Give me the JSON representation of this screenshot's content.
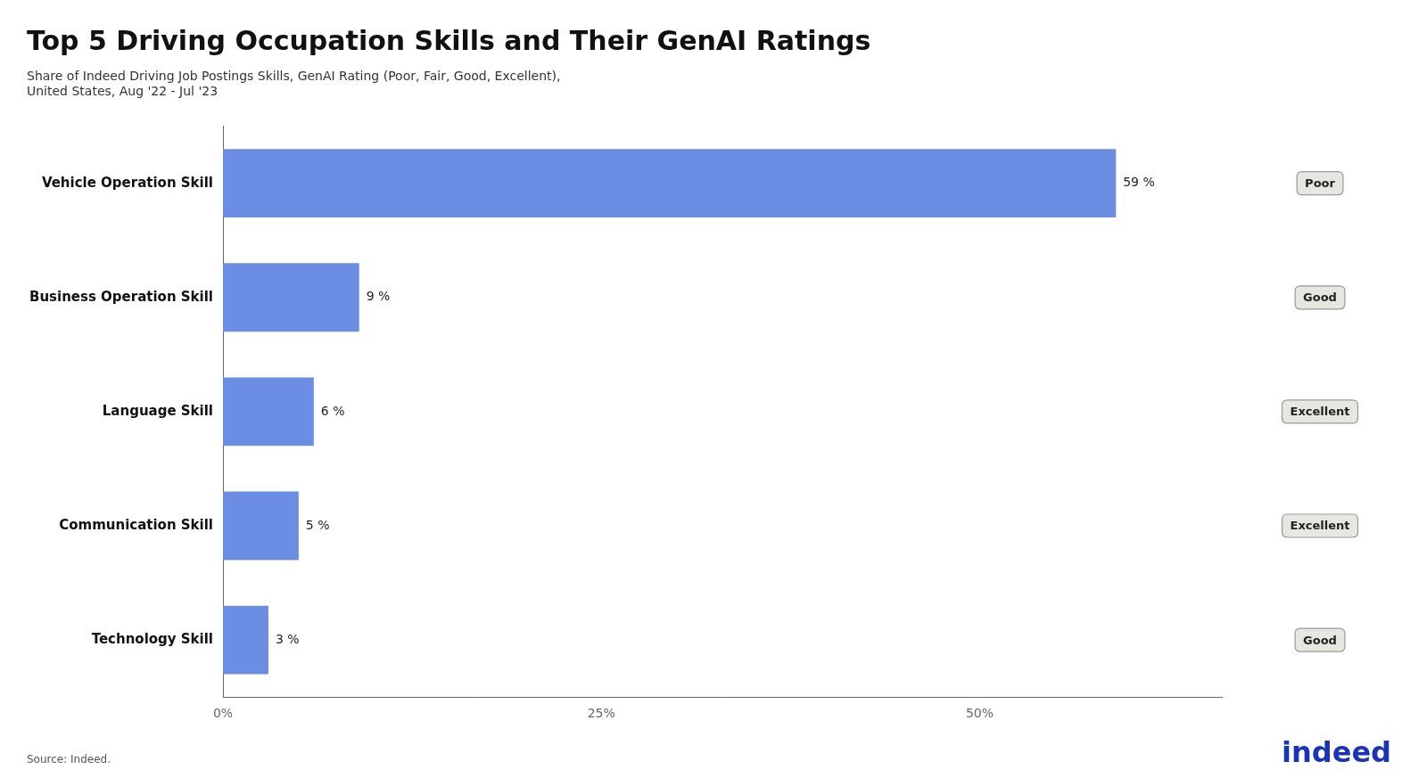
{
  "chart_data": {
    "type": "bar",
    "orientation": "horizontal",
    "title": "Top 5 Driving Occupation Skills and Their GenAI Ratings",
    "subtitle": "Share of Indeed Driving Job Postings Skills, GenAI Rating (Poor, Fair, Good, Excellent),\nUnited States, Aug '22 - Jul '23",
    "categories": [
      "Vehicle Operation Skill",
      "Business Operation Skill",
      "Language Skill",
      "Communication Skill",
      "Technology Skill"
    ],
    "values": [
      59,
      9,
      6,
      5,
      3
    ],
    "value_labels": [
      "59 %",
      "9 %",
      "6 %",
      "5 %",
      "3 %"
    ],
    "data_labels": true,
    "color": "#6b8de3",
    "ratings": [
      "Poor",
      "Good",
      "Excellent",
      "Excellent",
      "Good"
    ],
    "xlim": [
      0,
      66
    ],
    "xticks": [
      {
        "value": 0,
        "label": "0%"
      },
      {
        "value": 25,
        "label": "25%"
      },
      {
        "value": 50,
        "label": "50%"
      }
    ],
    "grid": false,
    "source": "Source: Indeed.",
    "annotations": [
      {
        "text": "indeed",
        "color": "#1a34b8"
      }
    ]
  }
}
